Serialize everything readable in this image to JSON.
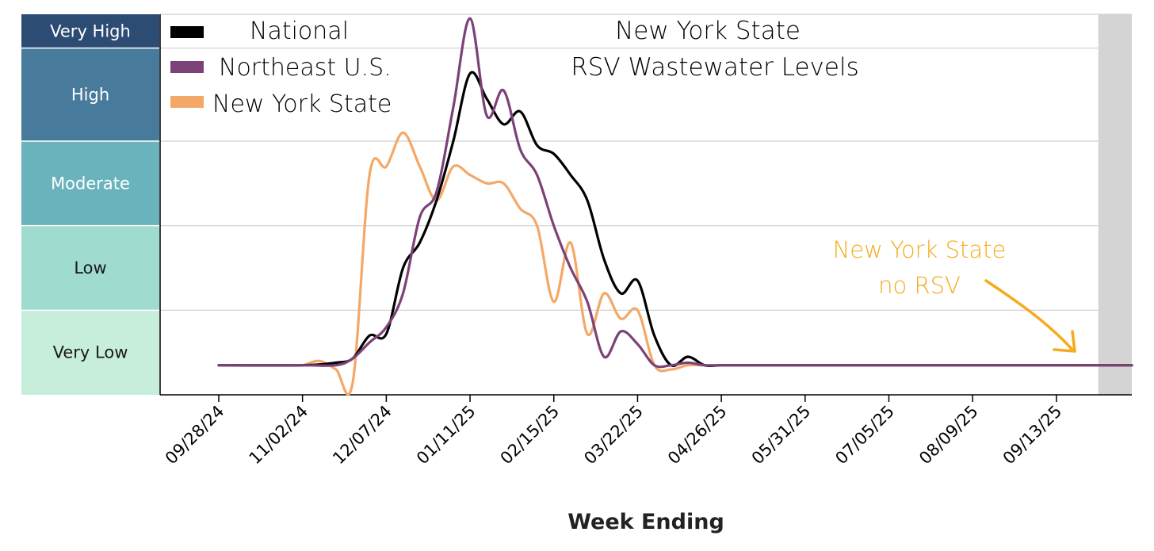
{
  "chart_data": {
    "type": "line",
    "title": "New York State",
    "subtitle": "RSV Wastewater Levels",
    "xlabel": "Week Ending",
    "ylabel": "",
    "x_tick_labels": [
      "09/28/24",
      "11/02/24",
      "12/07/24",
      "01/11/25",
      "02/15/25",
      "03/22/25",
      "04/26/25",
      "05/31/25",
      "07/05/25",
      "08/09/25",
      "09/13/25"
    ],
    "x_range_weeks": [
      -3.5,
      54.5
    ],
    "levels": [
      {
        "label": "Very Low",
        "range": [
          0,
          1
        ],
        "color": "#c6eedb",
        "text_color": "#1a1a1a"
      },
      {
        "label": "Low",
        "range": [
          1,
          2
        ],
        "color": "#9fdbcf",
        "text_color": "#1a1a1a"
      },
      {
        "label": "Moderate",
        "range": [
          2,
          3
        ],
        "color": "#6ab3bd",
        "text_color": "#ffffff"
      },
      {
        "label": "High",
        "range": [
          3,
          4.1
        ],
        "color": "#487b9b",
        "text_color": "#ffffff"
      },
      {
        "label": "Very High",
        "range": [
          4.1,
          4.5
        ],
        "color": "#2d4c74",
        "text_color": "#ffffff"
      }
    ],
    "ylim": [
      0,
      4.5
    ],
    "grid": true,
    "legend_position": "top-left",
    "series": [
      {
        "name": "National",
        "color": "#000000",
        "x": [
          0,
          5,
          7,
          8,
          9,
          10,
          11,
          12,
          13,
          14,
          15,
          16,
          17,
          18,
          19,
          20,
          21,
          22,
          23,
          24,
          25,
          26,
          27,
          28,
          29,
          30,
          31,
          32,
          33,
          34,
          54.5
        ],
        "y": [
          0.35,
          0.35,
          0.38,
          0.43,
          0.7,
          0.72,
          1.5,
          1.8,
          2.3,
          3.0,
          3.8,
          3.5,
          3.2,
          3.35,
          2.95,
          2.85,
          2.6,
          2.3,
          1.6,
          1.2,
          1.35,
          0.7,
          0.35,
          0.45,
          0.35,
          0.35,
          0.35,
          0.35,
          0.35,
          0.35,
          0.35
        ]
      },
      {
        "name": "Northeast U.S.",
        "color": "#7c4278",
        "x": [
          0,
          5,
          7,
          8,
          9,
          10,
          11,
          12,
          13,
          14,
          15,
          16,
          17,
          18,
          19,
          20,
          21,
          22,
          23,
          24,
          25,
          26,
          27,
          28,
          29,
          30,
          31,
          32,
          33,
          34,
          54.5
        ],
        "y": [
          0.35,
          0.35,
          0.35,
          0.43,
          0.62,
          0.8,
          1.2,
          2.1,
          2.4,
          3.4,
          4.45,
          3.3,
          3.6,
          2.9,
          2.6,
          2.0,
          1.5,
          1.1,
          0.45,
          0.75,
          0.6,
          0.35,
          0.35,
          0.38,
          0.35,
          0.35,
          0.35,
          0.35,
          0.35,
          0.35,
          0.35
        ]
      },
      {
        "name": "New York State",
        "color": "#f4a867",
        "x": [
          0,
          4,
          5,
          6,
          7,
          8,
          9,
          10,
          11,
          12,
          13,
          14,
          15,
          16,
          17,
          18,
          19,
          20,
          21,
          22,
          23,
          24,
          25,
          26,
          27,
          28,
          29,
          30,
          31,
          32,
          54.5
        ],
        "y": [
          0.35,
          0.35,
          0.35,
          0.4,
          0.3,
          0.15,
          2.6,
          2.7,
          3.1,
          2.7,
          2.3,
          2.7,
          2.6,
          2.5,
          2.5,
          2.2,
          2.0,
          1.1,
          1.8,
          0.72,
          1.2,
          0.9,
          1.0,
          0.35,
          0.3,
          0.35,
          0.35,
          0.35,
          0.35,
          0.35,
          0.35
        ]
      }
    ],
    "shaded_region_weeks": [
      52.5,
      54.5
    ],
    "annotation": {
      "lines": [
        "New York State",
        "no RSV"
      ],
      "color": "#f5ab1c",
      "points_to": "no data region"
    }
  }
}
